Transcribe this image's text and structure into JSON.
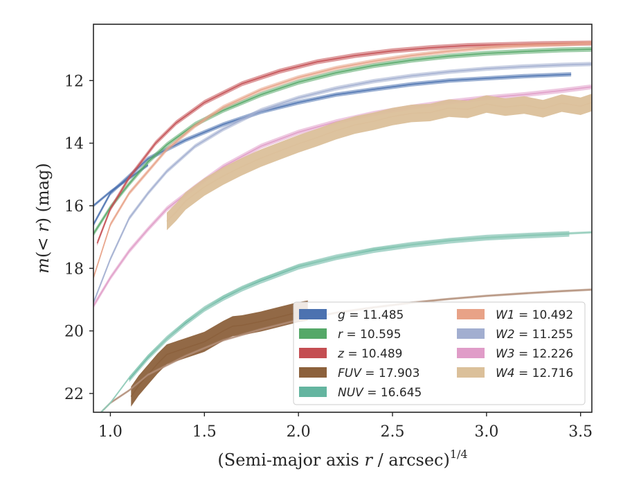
{
  "chart_data": {
    "type": "line",
    "title": "",
    "xlabel": "(Semi-major axis r / arcsec)",
    "xlabel_parts": [
      "(Semi-major axis ",
      "r",
      " / arcsec)",
      "1/4"
    ],
    "ylabel": "m(< r) (mag)",
    "ylabel_parts": [
      "m",
      "(< ",
      "r",
      ") (mag)"
    ],
    "xlim": [
      0.91,
      3.56
    ],
    "ylim": [
      22.6,
      10.2
    ],
    "y_inverted": true,
    "x_ticks": [
      1.0,
      1.5,
      2.0,
      2.5,
      3.0,
      3.5
    ],
    "x_tick_labels": [
      "1.0",
      "1.5",
      "2.0",
      "2.5",
      "3.0",
      "3.5"
    ],
    "y_ticks": [
      12,
      14,
      16,
      18,
      20,
      22
    ],
    "y_tick_labels": [
      "12",
      "14",
      "16",
      "18",
      "20",
      "22"
    ],
    "grid": false,
    "legend_placement": "lower-right",
    "legend_columns": 2,
    "series": [
      {
        "name": "g",
        "legend": "g = 11.485",
        "color": "#4c72b0",
        "band": 0.07,
        "x": [
          0.91,
          1.0,
          1.2,
          1.4,
          1.6,
          1.8,
          2.0,
          2.2,
          2.4,
          2.6,
          2.8,
          3.0,
          3.2,
          3.45
        ],
        "y": [
          16.6,
          15.6,
          14.5,
          13.9,
          13.4,
          13.0,
          12.7,
          12.45,
          12.28,
          12.12,
          12.0,
          11.93,
          11.86,
          11.8
        ]
      },
      {
        "name": "g (ext)",
        "color": "#4c72b0",
        "band": 0.05,
        "x": [
          0.91,
          1.0,
          1.2
        ],
        "y": [
          16.0,
          15.55,
          14.7
        ]
      },
      {
        "name": "r",
        "legend": "r = 10.595",
        "color": "#55a868",
        "band": 0.08,
        "x": [
          0.91,
          1.0,
          1.1,
          1.2,
          1.3,
          1.45,
          1.6,
          1.8,
          2.0,
          2.2,
          2.4,
          2.6,
          2.8,
          3.0,
          3.2,
          3.4,
          3.56
        ],
        "y": [
          16.9,
          16.05,
          15.3,
          14.6,
          14.05,
          13.4,
          12.95,
          12.45,
          12.05,
          11.75,
          11.52,
          11.35,
          11.22,
          11.13,
          11.07,
          11.02,
          11.0
        ]
      },
      {
        "name": "z",
        "legend": "z = 10.489",
        "color": "#c44e52",
        "band": 0.08,
        "x": [
          0.93,
          1.0,
          1.1,
          1.24,
          1.35,
          1.5,
          1.7,
          1.9,
          2.1,
          2.3,
          2.5,
          2.7,
          2.9,
          3.1,
          3.3,
          3.56
        ],
        "y": [
          17.2,
          16.1,
          15.1,
          14.0,
          13.35,
          12.7,
          12.1,
          11.7,
          11.4,
          11.2,
          11.05,
          10.95,
          10.88,
          10.85,
          10.82,
          10.8
        ]
      },
      {
        "name": "FUV",
        "legend": "FUV = 17.903",
        "color": "#8c613c",
        "band": 0.32,
        "x": [
          1.11,
          1.15,
          1.2,
          1.25,
          1.3,
          1.4,
          1.5,
          1.6,
          1.65,
          1.7,
          1.8,
          1.9,
          2.0,
          2.05
        ],
        "y": [
          22.1,
          21.75,
          21.4,
          21.05,
          20.75,
          20.55,
          20.35,
          20.0,
          19.85,
          19.82,
          19.7,
          19.55,
          19.4,
          19.35
        ]
      },
      {
        "name": "FUV (ext)",
        "color": "#b08c76",
        "band": 0.04,
        "x": [
          0.95,
          1.0,
          1.1,
          1.2,
          1.4,
          1.6,
          1.8,
          2.0,
          2.2,
          2.4,
          2.6,
          2.8,
          3.0,
          3.2,
          3.4,
          3.56
        ],
        "y": [
          22.6,
          22.3,
          21.9,
          21.4,
          20.8,
          20.3,
          19.95,
          19.65,
          19.42,
          19.25,
          19.1,
          18.98,
          18.88,
          18.8,
          18.73,
          18.68
        ]
      },
      {
        "name": "NUV",
        "legend": "NUV = 16.645",
        "color": "#64b5a0",
        "band": 0.09,
        "x": [
          1.1,
          1.2,
          1.3,
          1.4,
          1.5,
          1.6,
          1.7,
          1.8,
          2.0,
          2.2,
          2.4,
          2.6,
          2.8,
          3.0,
          3.2,
          3.44
        ],
        "y": [
          21.55,
          20.85,
          20.25,
          19.75,
          19.3,
          18.95,
          18.65,
          18.4,
          17.95,
          17.65,
          17.42,
          17.25,
          17.12,
          17.02,
          16.96,
          16.9
        ]
      },
      {
        "name": "NUV (ext)",
        "color": "#8fcbb8",
        "band": 0.04,
        "x": [
          0.95,
          1.0,
          1.1,
          1.2,
          1.4,
          1.6,
          1.8,
          2.0,
          2.4,
          2.8,
          3.2,
          3.56
        ],
        "y": [
          22.6,
          22.3,
          21.5,
          20.8,
          19.7,
          18.9,
          18.35,
          17.92,
          17.38,
          17.1,
          16.95,
          16.85
        ]
      },
      {
        "name": "W1",
        "legend": "W1 = 10.492",
        "color": "#e8a287",
        "band": 0.07,
        "x": [
          0.91,
          1.0,
          1.1,
          1.2,
          1.3,
          1.45,
          1.6,
          1.8,
          2.0,
          2.2,
          2.4,
          2.6,
          2.8,
          3.0,
          3.2,
          3.4,
          3.56
        ],
        "y": [
          18.3,
          16.6,
          15.6,
          14.9,
          14.2,
          13.45,
          12.85,
          12.3,
          11.9,
          11.6,
          11.38,
          11.2,
          11.06,
          10.95,
          10.88,
          10.84,
          10.8
        ]
      },
      {
        "name": "W2",
        "legend": "W2 = 11.255",
        "color": "#a2aed0",
        "band": 0.07,
        "x": [
          0.91,
          1.0,
          1.1,
          1.2,
          1.3,
          1.45,
          1.6,
          1.8,
          2.0,
          2.2,
          2.4,
          2.6,
          2.8,
          3.0,
          3.2,
          3.4,
          3.56
        ],
        "y": [
          19.1,
          17.7,
          16.4,
          15.6,
          14.9,
          14.1,
          13.55,
          12.95,
          12.55,
          12.25,
          12.02,
          11.85,
          11.72,
          11.62,
          11.55,
          11.5,
          11.47
        ]
      },
      {
        "name": "W3",
        "legend": "W3 = 12.226",
        "color": "#e09cc8",
        "band": 0.08,
        "x": [
          0.91,
          1.0,
          1.1,
          1.2,
          1.3,
          1.45,
          1.6,
          1.8,
          2.0,
          2.2,
          2.4,
          2.6,
          2.8,
          3.0,
          3.2,
          3.4,
          3.56
        ],
        "y": [
          19.2,
          18.3,
          17.45,
          16.75,
          16.1,
          15.4,
          14.75,
          14.1,
          13.65,
          13.32,
          13.05,
          12.85,
          12.68,
          12.55,
          12.45,
          12.32,
          12.2
        ]
      },
      {
        "name": "W4",
        "legend": "W4 = 12.716",
        "color": "#dbc09a",
        "band": 0.28,
        "x": [
          1.3,
          1.35,
          1.4,
          1.5,
          1.6,
          1.7,
          1.8,
          1.9,
          2.0,
          2.1,
          2.2,
          2.3,
          2.4,
          2.5,
          2.6,
          2.7,
          2.8,
          2.9,
          3.0,
          3.1,
          3.2,
          3.3,
          3.4,
          3.5,
          3.56
        ],
        "y": [
          16.5,
          16.2,
          15.85,
          15.4,
          15.05,
          14.75,
          14.48,
          14.25,
          14.02,
          13.82,
          13.6,
          13.42,
          13.3,
          13.15,
          13.05,
          13.02,
          12.88,
          12.92,
          12.75,
          12.85,
          12.78,
          12.9,
          12.72,
          12.82,
          12.7
        ]
      }
    ]
  }
}
